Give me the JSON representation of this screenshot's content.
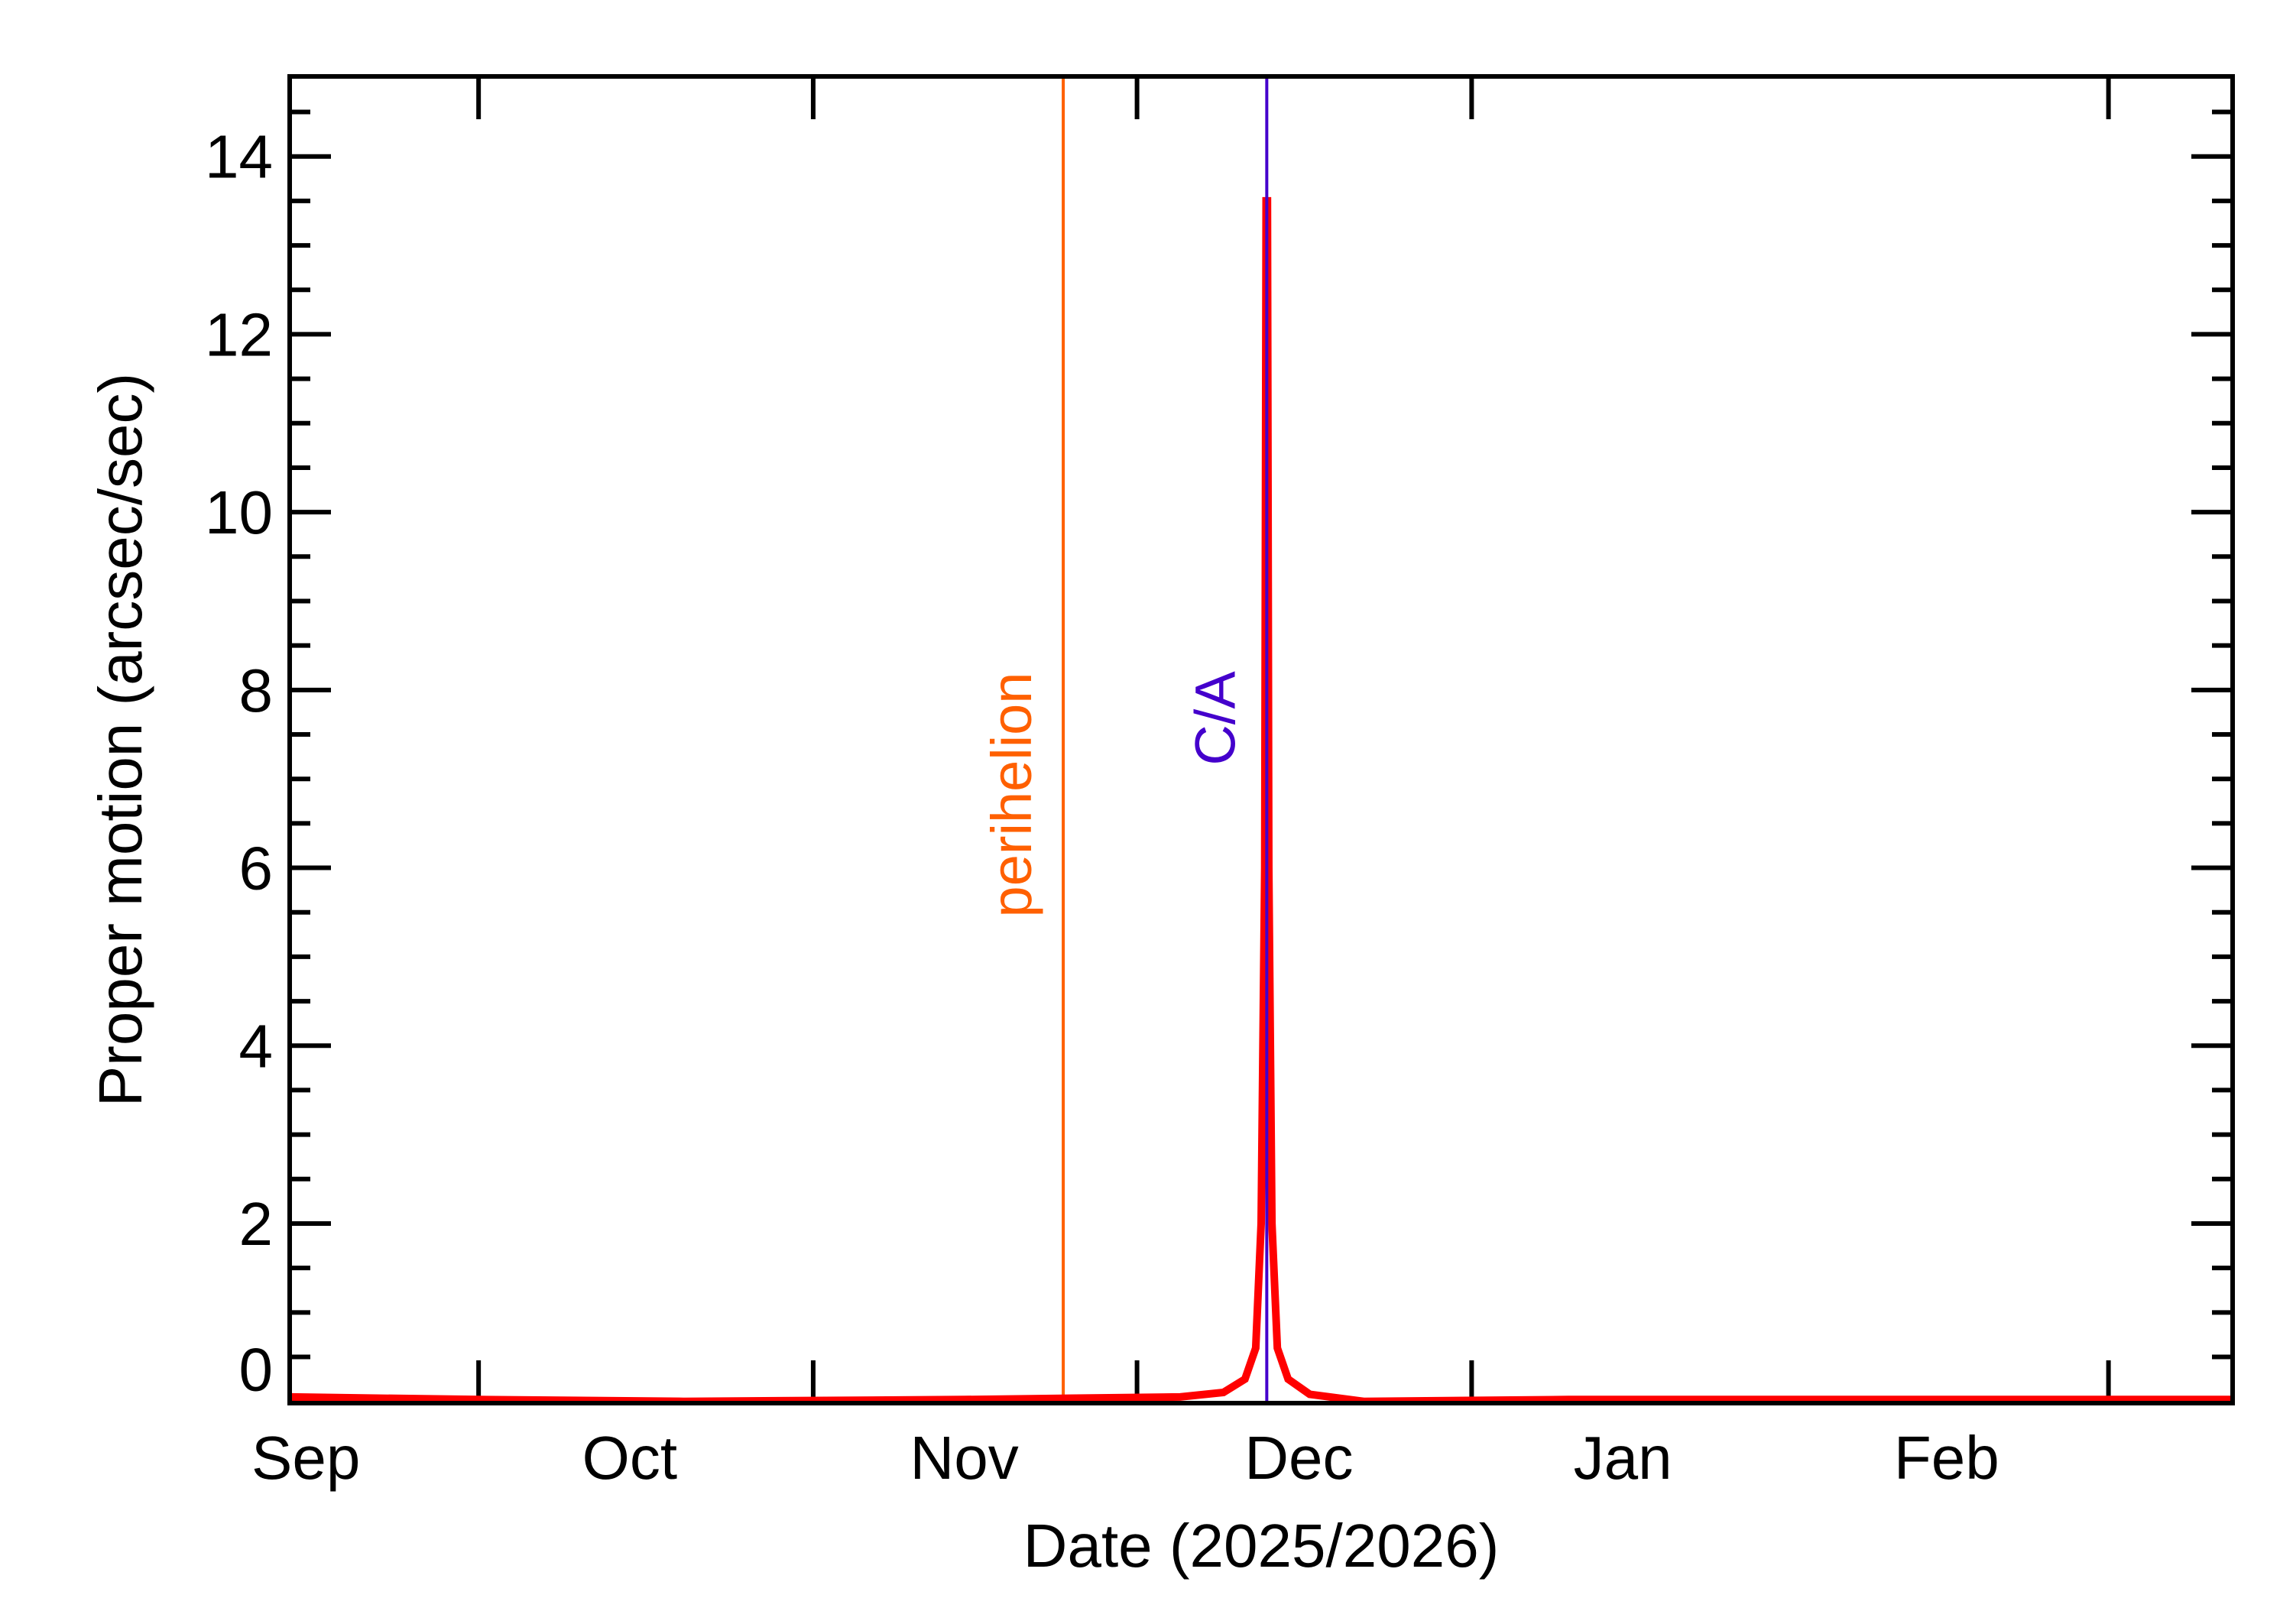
{
  "chart_data": {
    "type": "line",
    "title": "",
    "xlabel": "Date (2025/2026)",
    "ylabel": "Proper motion (arcsec/sec)",
    "xlim": [
      "2025-09-13T12:00",
      "2026-03-12T12:00"
    ],
    "ylim": [
      -0.02,
      14.9
    ],
    "grid": false,
    "x_tick_label_positions": [
      {
        "label": "Sep",
        "date": "2025-09-15"
      },
      {
        "label": "Oct",
        "date": "2025-10-15"
      },
      {
        "label": "Nov",
        "date": "2025-11-15"
      },
      {
        "label": "Dec",
        "date": "2025-12-16"
      },
      {
        "label": "Jan",
        "date": "2026-01-15"
      },
      {
        "label": "Feb",
        "date": "2026-02-14"
      }
    ],
    "x_major_ticks": [
      "2025-10-01",
      "2025-11-01",
      "2025-12-01",
      "2026-01-01",
      "2026-03-01"
    ],
    "y_ticks": [
      0,
      2,
      4,
      6,
      8,
      10,
      12,
      14
    ],
    "y_minor_step": 0.5,
    "series": [
      {
        "color": "#ff0000",
        "points": [
          [
            "2025-09-13T12:00",
            0.05
          ],
          [
            "2025-10-01T00:00",
            0.02
          ],
          [
            "2025-10-20T00:00",
            0.0
          ],
          [
            "2025-11-15T00:00",
            0.02
          ],
          [
            "2025-12-05T00:00",
            0.05
          ],
          [
            "2025-12-09T00:00",
            0.1
          ],
          [
            "2025-12-11T00:00",
            0.25
          ],
          [
            "2025-12-12T00:00",
            0.6
          ],
          [
            "2025-12-12T12:00",
            2.0
          ],
          [
            "2025-12-12T20:00",
            6.0
          ],
          [
            "2025-12-12T23:00",
            13.5
          ],
          [
            "2025-12-13T02:00",
            13.5
          ],
          [
            "2025-12-13T05:00",
            6.0
          ],
          [
            "2025-12-13T12:00",
            2.0
          ],
          [
            "2025-12-14T00:00",
            0.6
          ],
          [
            "2025-12-15T00:00",
            0.25
          ],
          [
            "2025-12-17T00:00",
            0.08
          ],
          [
            "2025-12-22T00:00",
            0.0
          ],
          [
            "2026-01-10T00:00",
            0.02
          ],
          [
            "2026-03-12T12:00",
            0.02
          ]
        ]
      }
    ],
    "annotations": [
      {
        "label": "perihelion",
        "date": "2025-11-24T04:00",
        "color": "#ff6000"
      },
      {
        "label": "C/A",
        "date": "2025-12-13T00:30",
        "color": "#4400cc"
      }
    ]
  }
}
